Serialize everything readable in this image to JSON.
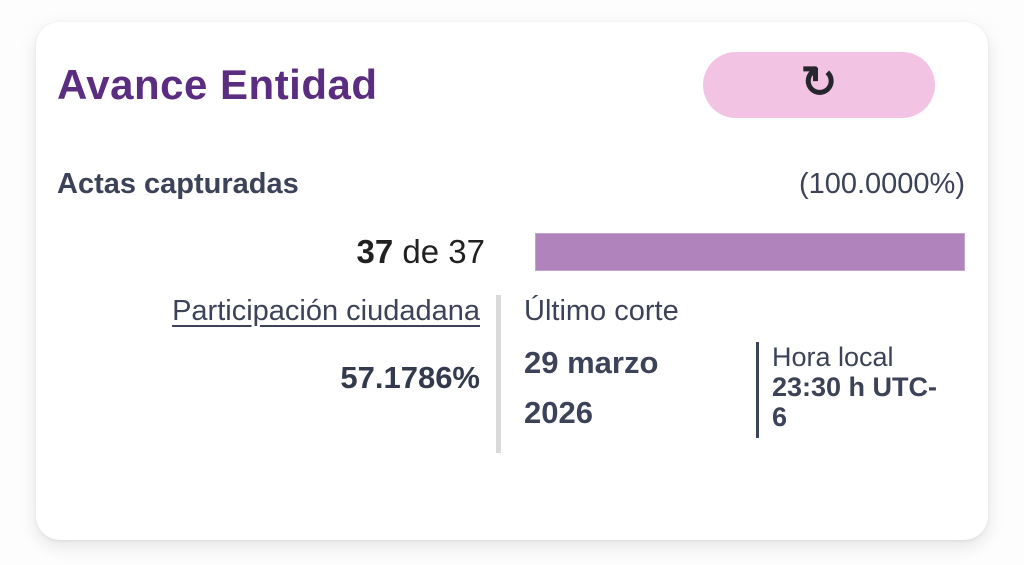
{
  "card": {
    "title": "Avance Entidad",
    "refresh_button": {
      "icon": "refresh-icon"
    },
    "actas": {
      "label": "Actas capturadas",
      "percent_display": "(100.0000%)",
      "captured": "37",
      "of_total": "de 37",
      "progress_percent": 100
    },
    "participacion": {
      "label": "Participación ciudadana",
      "value": "57.1786%"
    },
    "ultimo_corte": {
      "label": "Último corte",
      "date": "29 marzo 2026",
      "hora_local_label": "Hora local",
      "time": "23:30 h UTC-6"
    }
  },
  "icons": {
    "refresh": "↻"
  },
  "colors": {
    "title_purple": "#5b2d81",
    "text_slate": "#3c4257",
    "progress_purple": "#b083bd",
    "pill_pink": "#f3c3e3",
    "divider_gray": "#d9d9d9"
  }
}
